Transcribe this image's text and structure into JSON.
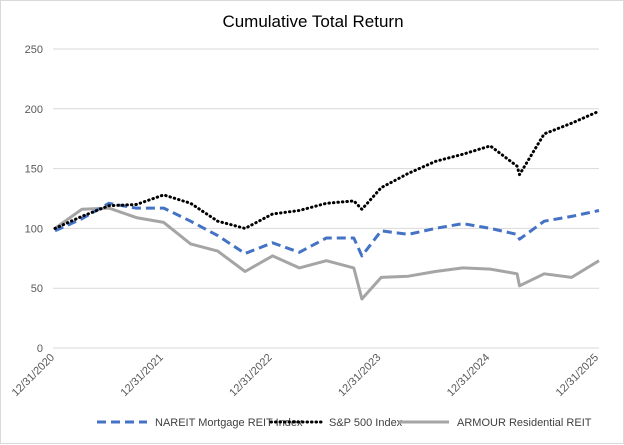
{
  "chart_data": {
    "type": "line",
    "title": "Cumulative Total Return",
    "xlabel": "",
    "ylabel": "",
    "ylim": [
      0,
      250
    ],
    "yticks": [
      0,
      50,
      100,
      150,
      200,
      250
    ],
    "xticks": [
      "12/31/2020",
      "12/31/2021",
      "12/31/2022",
      "12/31/2023",
      "12/31/2024",
      "12/31/2025"
    ],
    "grid": "horizontal",
    "legend": "bottom",
    "x": [
      "2020-12-31",
      "2021-03-31",
      "2021-06-30",
      "2021-09-30",
      "2021-12-31",
      "2022-03-31",
      "2022-06-30",
      "2022-09-30",
      "2022-12-31",
      "2023-03-31",
      "2023-06-30",
      "2023-09-30",
      "2023-10-27",
      "2023-12-31",
      "2024-03-31",
      "2024-06-30",
      "2024-09-30",
      "2024-12-31",
      "2025-03-31",
      "2025-04-08",
      "2025-06-30",
      "2025-09-30",
      "2025-12-31"
    ],
    "series": [
      {
        "name": "NAREIT Mortgage REIT Index",
        "color": "#4472C4",
        "style": "dashed",
        "values": [
          98,
          108,
          121,
          117,
          117,
          106,
          94,
          79,
          88,
          80,
          92,
          92,
          77,
          98,
          95,
          100,
          104,
          100,
          95,
          91,
          106,
          110,
          115
        ]
      },
      {
        "name": "S&P 500 Index",
        "color": "#000000",
        "style": "dotted",
        "values": [
          100,
          110,
          119,
          120,
          128,
          121,
          106,
          100,
          112,
          115,
          121,
          123,
          116,
          134,
          146,
          156,
          162,
          169,
          152,
          145,
          179,
          188,
          198
        ]
      },
      {
        "name": "ARMOUR Residential REIT",
        "color": "#A5A5A5",
        "style": "solid",
        "values": [
          100,
          116,
          117,
          109,
          105,
          87,
          81,
          64,
          77,
          67,
          73,
          67,
          41,
          59,
          60,
          64,
          67,
          66,
          62,
          52,
          62,
          59,
          73
        ]
      }
    ]
  }
}
